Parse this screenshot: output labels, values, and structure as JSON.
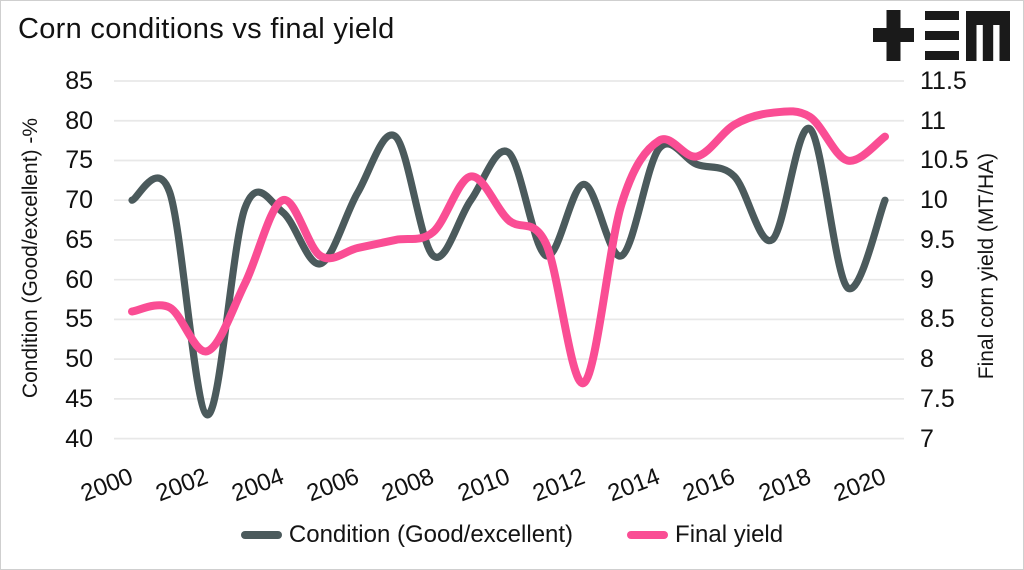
{
  "header": {
    "title": "Corn conditions vs final yield",
    "logo_name": "TEM logo"
  },
  "colors": {
    "condition_line": "#4b5a5c",
    "yield_line": "#fa4d94",
    "gridline": "#e8e8e8",
    "text": "#141414",
    "logo": "#1a1a1a",
    "frame_border": "#cfcfcf"
  },
  "chart_data": {
    "type": "line",
    "title": "Corn conditions vs final yield",
    "x": [
      2000,
      2001,
      2002,
      2003,
      2004,
      2005,
      2006,
      2007,
      2008,
      2009,
      2010,
      2011,
      2012,
      2013,
      2014,
      2015,
      2016,
      2017,
      2018,
      2019,
      2020
    ],
    "x_tick_labels": [
      "2000",
      "2002",
      "2004",
      "2006",
      "2008",
      "2010",
      "2012",
      "2014",
      "2016",
      "2018",
      "2020"
    ],
    "left_axis": {
      "label": "Condition (Good/excellent) -%",
      "min": 40,
      "max": 85,
      "tick_labels": [
        "85",
        "80",
        "75",
        "70",
        "65",
        "60",
        "55",
        "50",
        "45",
        "40"
      ]
    },
    "right_axis": {
      "label": "Final corn yield (MT/HA)",
      "min": 7,
      "max": 11.5,
      "tick_labels": [
        "11.5",
        "11",
        "10.5",
        "10",
        "9.5",
        "9",
        "8.5",
        "8",
        "7.5",
        "7"
      ]
    },
    "series": [
      {
        "name": "Condition (Good/excellent)",
        "axis": "left",
        "color": "#4b5a5c",
        "values": [
          70,
          71,
          43,
          69,
          68.5,
          62,
          71,
          78,
          63,
          70,
          76,
          63,
          72,
          63,
          76.5,
          74.5,
          73,
          65,
          79,
          59,
          70
        ]
      },
      {
        "name": "Final yield",
        "axis": "right",
        "color": "#fa4d94",
        "values": [
          8.6,
          8.65,
          8.1,
          8.95,
          10.0,
          9.3,
          9.4,
          9.5,
          9.6,
          10.3,
          9.75,
          9.45,
          7.7,
          9.95,
          10.75,
          10.55,
          10.95,
          11.1,
          11.05,
          10.5,
          10.8
        ]
      }
    ],
    "grid": "horizontal",
    "legend_position": "bottom"
  },
  "legend": {
    "items": [
      {
        "label": "Condition (Good/excellent)",
        "color": "#4b5a5c"
      },
      {
        "label": "Final yield",
        "color": "#fa4d94"
      }
    ]
  }
}
